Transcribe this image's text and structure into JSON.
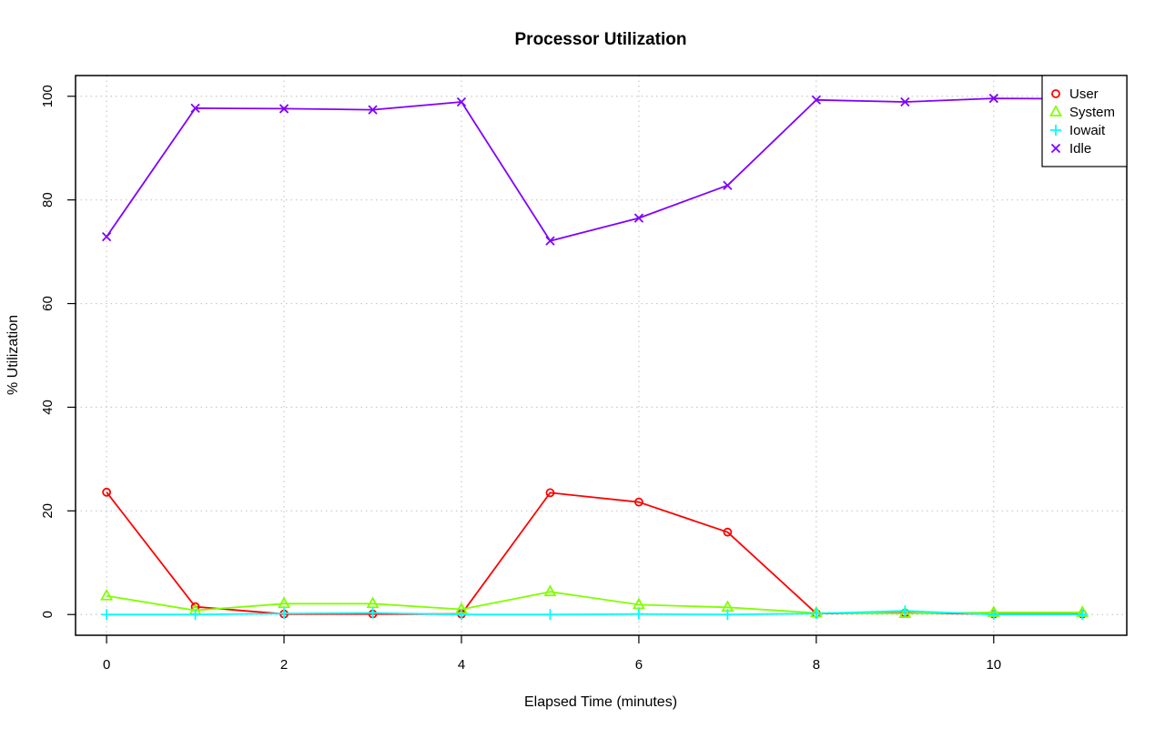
{
  "chart_data": {
    "type": "line",
    "title": "Processor Utilization",
    "xlabel": "Elapsed Time (minutes)",
    "ylabel": "% Utilization",
    "xlim": [
      -0.35,
      11.5
    ],
    "ylim": [
      -4,
      104
    ],
    "xticks": [
      0,
      2,
      4,
      6,
      8,
      10
    ],
    "yticks": [
      0,
      20,
      40,
      60,
      80,
      100
    ],
    "grid": true,
    "legend_position": "top-right",
    "x": [
      0,
      1,
      2,
      3,
      4,
      5,
      6,
      7,
      8,
      9,
      10,
      11
    ],
    "series": [
      {
        "name": "User",
        "color": "#ff0000",
        "marker": "circle",
        "values": [
          23.6,
          1.5,
          0.1,
          0.1,
          0.1,
          23.5,
          21.7,
          15.9,
          0.2,
          0.3,
          0.1,
          0.1
        ]
      },
      {
        "name": "System",
        "color": "#80ff00",
        "marker": "triangle",
        "values": [
          3.6,
          0.8,
          2.1,
          2.1,
          1.0,
          4.4,
          1.9,
          1.4,
          0.3,
          0.2,
          0.4,
          0.4
        ]
      },
      {
        "name": "Iowait",
        "color": "#00ffff",
        "marker": "plus",
        "values": [
          0.0,
          0.0,
          0.2,
          0.3,
          0.0,
          0.0,
          0.1,
          0.0,
          0.2,
          0.7,
          0.0,
          0.0
        ]
      },
      {
        "name": "Idle",
        "color": "#8000ff",
        "marker": "cross",
        "values": [
          72.9,
          97.7,
          97.6,
          97.4,
          98.9,
          72.1,
          76.5,
          82.8,
          99.3,
          98.9,
          99.6,
          99.5
        ]
      }
    ]
  }
}
